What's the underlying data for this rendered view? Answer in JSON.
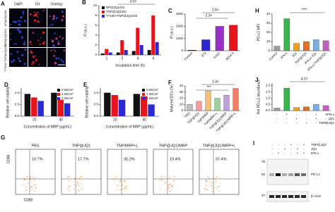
{
  "chart_data": [
    {
      "type": "bar",
      "panel": "B",
      "ylabel": "FI (a.u.)",
      "xlabel": "Incubation time (h)",
      "categories": [
        "1",
        "2",
        "4",
        "6"
      ],
      "series": [
        {
          "name": "NP@JQ1/DiI",
          "color": "#111111",
          "values": [
            0.3,
            0.5,
            0.8,
            1.0
          ]
        },
        {
          "name": "TNP@JQ1/DiI",
          "color": "#e8141c",
          "values": [
            1.2,
            3.0,
            5.5,
            8.0
          ]
        },
        {
          "name": "T7100+TNP@JQ1/DiI",
          "color": "#2a2ad0",
          "values": [
            0.5,
            1.0,
            2.0,
            2.6
          ]
        }
      ],
      "ylim": [
        0,
        10
      ],
      "yticks": [
        0,
        2,
        4,
        6,
        8,
        10
      ],
      "annotations": [
        "3.0×"
      ]
    },
    {
      "type": "bar",
      "panel": "C",
      "ylabel": "FI (a.u.)",
      "categories": [
        "Control",
        "3T3",
        "G422",
        "bEnd.3"
      ],
      "values": [
        50,
        900,
        2000,
        2100
      ],
      "colors": [
        "#111111",
        "#2a2ad0",
        "#9b30c8",
        "#e8141c"
      ],
      "ylim": [
        0,
        3000
      ],
      "yticks": [
        0,
        1000,
        2000,
        3000
      ],
      "annotations": [
        "2.6×",
        "2.3×"
      ]
    },
    {
      "type": "bar",
      "panel": "H",
      "ylabel": "PD-L1 MFI",
      "categories": [
        "Control",
        "IFN-γ",
        "JQ1",
        "TNP@JQ1",
        "IFN-γ+JQ1",
        "IFN-γ+TNP@JQ1"
      ],
      "values": [
        5,
        35,
        8,
        10,
        12,
        11
      ],
      "colors": [
        "#9e9e9e",
        "#3cb44b",
        "#f0a020",
        "#e07020",
        "#7ab0e0",
        "#c060c0"
      ],
      "ylim": [
        0,
        40
      ],
      "yticks": [
        0,
        10,
        20,
        30,
        40
      ],
      "annotations": [
        "****"
      ]
    },
    {
      "type": "bar",
      "panel": "D",
      "ylabel": "Relative cell viability",
      "xlabel": "Concentration of MRP (μg/mL)",
      "categories": [
        "20",
        "40"
      ],
      "series": [
        {
          "name": "0 W/cm²",
          "color": "#111111",
          "values": [
            0.95,
            1.0
          ]
        },
        {
          "name": "1 W/cm²",
          "color": "#e8141c",
          "values": [
            0.8,
            0.7
          ]
        },
        {
          "name": "2 W/cm²",
          "color": "#2a2ad0",
          "values": [
            0.65,
            0.55
          ]
        }
      ],
      "ylim": [
        0,
        1.2
      ],
      "yticks": [
        {
          "value": 0,
          "label": "0.0"
        },
        {
          "value": 0.5,
          "label": "0.5"
        },
        {
          "value": 1,
          "label": "1.0"
        }
      ]
    },
    {
      "type": "bar",
      "panel": "E",
      "ylabel": "Relative cell viability",
      "xlabel": "Concentration of MRP (μg/mL)",
      "categories": [
        "20",
        "40"
      ],
      "series": [
        {
          "name": "0 W/cm²",
          "color": "#111111",
          "values": [
            1.0,
            0.95
          ]
        },
        {
          "name": "1 W/cm²",
          "color": "#e8141c",
          "values": [
            0.9,
            0.85
          ]
        },
        {
          "name": "2 W/cm²",
          "color": "#2a2ad0",
          "values": [
            0.7,
            0.5
          ]
        }
      ],
      "ylim": [
        0,
        1.2
      ],
      "yticks": [
        {
          "value": 0,
          "label": "0.0"
        },
        {
          "value": 0.5,
          "label": "0.5"
        },
        {
          "value": 1,
          "label": "1.0"
        }
      ]
    },
    {
      "type": "bar",
      "panel": "F",
      "ylabel": "Matured DCs (%)",
      "categories": [
        "PBS",
        "TNP@JQ1",
        "TNP/MRP",
        "TNP/MRP+L",
        "TNP@JQ1/MRP",
        "TNP@JQ1/MRP+L"
      ],
      "values": [
        10,
        15,
        32,
        20,
        25,
        36
      ],
      "colors": [
        "#bdbdbd",
        "#f4a0a0",
        "#f7c070",
        "#a0d0a0",
        "#c0a0e0",
        "#f08060"
      ],
      "ylim": [
        0,
        40
      ],
      "yticks": [
        0,
        10,
        20,
        30,
        40
      ],
      "annotations": [
        "3.3×",
        "***"
      ]
    },
    {
      "type": "bar",
      "panel": "J",
      "ylabel": "Rel PD-L1 abundance",
      "categories": [
        null,
        null,
        null,
        null,
        null,
        null
      ],
      "values": [
        0.2,
        1.8,
        0.25,
        0.3,
        0.5,
        0.4
      ],
      "colors": [
        "#9e9e9e",
        "#3cb44b",
        "#f0a020",
        "#e07020",
        "#7ab0e0",
        "#c060c0"
      ],
      "conditions": [
        {
          "name": "IFN-γ",
          "signs": [
            "-",
            "+",
            "-",
            "-",
            "+",
            "+"
          ]
        },
        {
          "name": "JQ1",
          "signs": [
            "-",
            "-",
            "+",
            "-",
            "+",
            "-"
          ]
        },
        {
          "name": "TNP@JQ1",
          "signs": [
            "-",
            "-",
            "-",
            "+",
            "-",
            "+"
          ]
        }
      ],
      "ylim": [
        0,
        2.2
      ],
      "yticks": [
        {
          "value": 0,
          "label": "0.0"
        },
        {
          "value": 0.5,
          "label": "0.5"
        },
        {
          "value": 1,
          "label": "1.0"
        },
        {
          "value": 1.5,
          "label": "1.5"
        },
        {
          "value": 2,
          "label": "2.0"
        }
      ],
      "annotations": [
        "4.2×"
      ]
    }
  ],
  "image_panels": {
    "A": {
      "panel": "A",
      "columns": [
        "DAPI",
        "DiI",
        "Overlay"
      ],
      "rows": [
        "NP@JQ1/DiI",
        "TNP@JQ1/DiI",
        "T7100+TNP@JQ1/DiI"
      ]
    },
    "G": {
      "panel": "G",
      "ylabel": "CD86",
      "xlabel": "CD80",
      "plots": [
        {
          "title": "PBS",
          "percent": "10.7%"
        },
        {
          "title": "TNP@JQ1",
          "percent": "17.7%"
        },
        {
          "title": "TNP/MRP+L",
          "percent": "35.2%"
        },
        {
          "title": "TNP@JQ1/MRP",
          "percent": "19.4%"
        },
        {
          "title": "TNP@JQ1/MRP+L",
          "percent": "37.4%"
        }
      ]
    },
    "I": {
      "panel": "I",
      "conditions": [
        {
          "name": "TNP@JQ1",
          "signs": [
            "-",
            "-",
            "-",
            "+",
            "-",
            "+"
          ]
        },
        {
          "name": "JQ1",
          "signs": [
            "-",
            "-",
            "+",
            "-",
            "+",
            "-"
          ]
        },
        {
          "name": "IFN-γ",
          "signs": [
            "-",
            "+",
            "-",
            "-",
            "+",
            "+"
          ]
        }
      ],
      "markers": [
        "75",
        "50",
        "37"
      ],
      "bands": [
        "PD-L1",
        "β-Actin"
      ]
    }
  }
}
